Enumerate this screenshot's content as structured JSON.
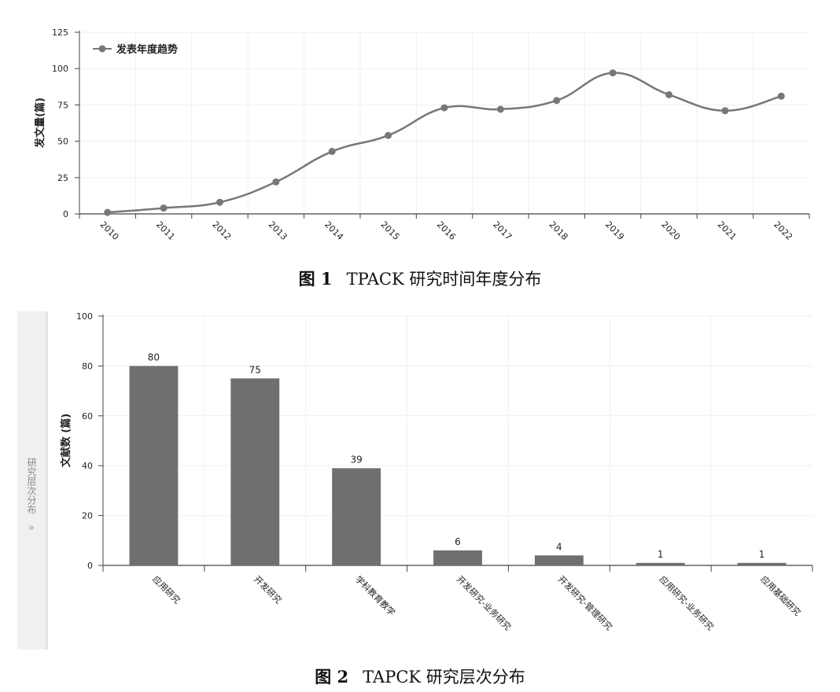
{
  "figure1": {
    "caption_no": "图 1",
    "caption_title": "TPACK 研究时间年度分布"
  },
  "figure2": {
    "caption_no": "图 2",
    "caption_title": "TAPCK 研究层次分布",
    "side_panel": {
      "label": "研究层次分布",
      "arrow": "»"
    }
  },
  "colors": {
    "line": "#777777",
    "bar": "#6f6f6f",
    "grid": "#efefef",
    "axis": "#444444"
  },
  "chart_data": [
    {
      "type": "line",
      "x": [
        "2010",
        "2011",
        "2012",
        "2013",
        "2014",
        "2015",
        "2016",
        "2017",
        "2018",
        "2019",
        "2020",
        "2021",
        "2022"
      ],
      "series": [
        {
          "name": "发表年度趋势",
          "values": [
            1,
            4,
            8,
            22,
            43,
            54,
            73,
            72,
            78,
            97,
            82,
            71,
            81
          ]
        }
      ],
      "ylabel": "发文量(篇)",
      "xlabel": "",
      "ylim": [
        0,
        125
      ],
      "yticks": [
        0,
        25,
        50,
        75,
        100,
        125
      ],
      "grid": true,
      "legend": "top-left",
      "smooth": true
    },
    {
      "type": "bar",
      "categories": [
        "应用研究",
        "开发研究",
        "学科教育教学",
        "开发研究-业务研究",
        "开发研究-管理研究",
        "应用研究-业务研究",
        "应用基础研究"
      ],
      "values": [
        80,
        75,
        39,
        6,
        4,
        1,
        1
      ],
      "ylabel": "文献数 (篇)",
      "xlabel": "",
      "ylim": [
        0,
        100
      ],
      "yticks": [
        0,
        20,
        40,
        60,
        80,
        100
      ],
      "grid": true,
      "data_labels": true
    }
  ]
}
